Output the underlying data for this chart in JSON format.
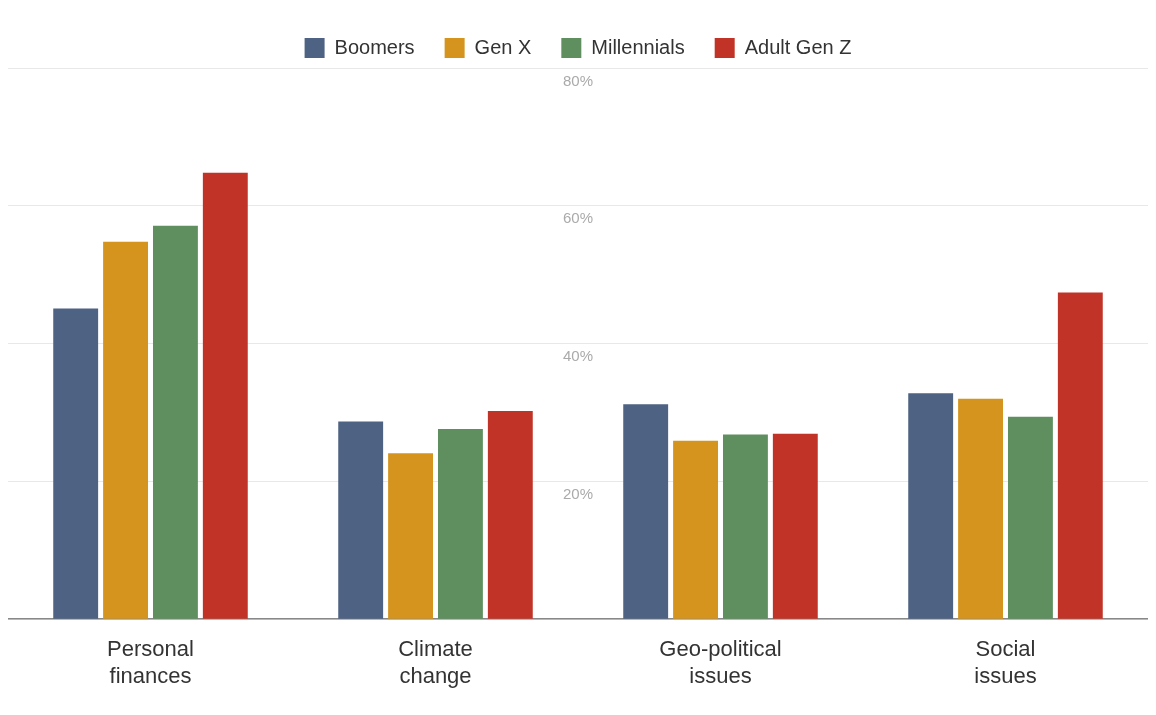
{
  "chart_data": {
    "type": "bar",
    "categories": [
      "Personal finances",
      "Climate change",
      "Geo-political issues",
      "Social issues"
    ],
    "series": [
      {
        "name": "Boomers",
        "color": "#4e6283",
        "values": [
          45.1,
          28.7,
          31.2,
          32.8
        ]
      },
      {
        "name": "Gen X",
        "color": "#d4941d",
        "values": [
          54.8,
          24.1,
          25.9,
          32.0
        ]
      },
      {
        "name": "Millennials",
        "color": "#5f8f5f",
        "values": [
          57.1,
          27.6,
          26.8,
          29.4
        ]
      },
      {
        "name": "Adult Gen Z",
        "color": "#c03326",
        "values": [
          64.8,
          30.2,
          26.9,
          47.4
        ]
      }
    ],
    "ylim": [
      0,
      80
    ],
    "yticks": [
      {
        "value": 0,
        "label": null
      },
      {
        "value": 20,
        "label": "20%"
      },
      {
        "value": 40,
        "label": "40%"
      },
      {
        "value": 60,
        "label": "60%"
      },
      {
        "value": 80,
        "label": "80%"
      }
    ],
    "grid": "y",
    "legend": "top"
  }
}
